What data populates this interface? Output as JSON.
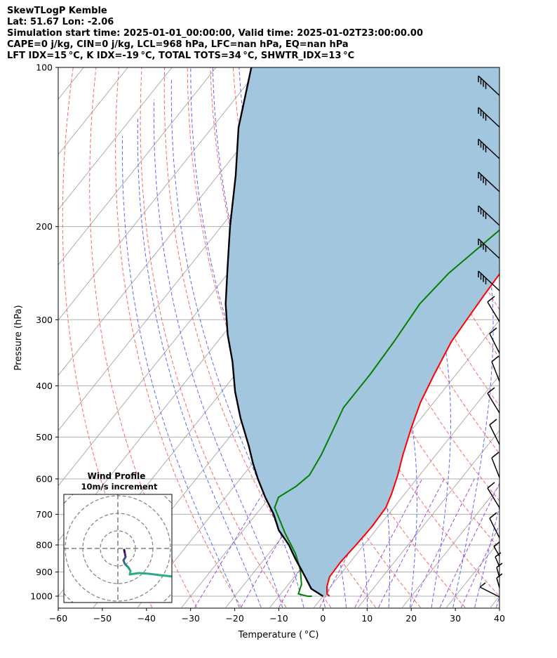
{
  "header": {
    "title": "SkewTLogP Kemble",
    "location": "Lat: 51.67   Lon: -2.06",
    "times": "Simulation start time: 2025-01-01_00:00:00, Valid time: 2025-01-02T23:00:00.00",
    "indices1": "CAPE=0 j/kg, CIN=0 j/kg, LCL=968 hPa, LFC=nan hPa, EQ=nan hPa",
    "indices2": "LFT IDX=15 °C, K IDX=-19 °C, TOTAL TOTS=34 °C, SHWTR_IDX=13 °C"
  },
  "chart_data": {
    "type": "skew-t log-p",
    "xlabel": "Temperature ( °C)",
    "ylabel": "Pressure (hPa)",
    "xlim": [
      -60,
      40
    ],
    "ylim": [
      1050,
      100
    ],
    "xticks": [
      "−60",
      "−50",
      "−40",
      "−30",
      "−20",
      "−10",
      "0",
      "10",
      "20",
      "30",
      "40"
    ],
    "yticks": [
      "100",
      "200",
      "300",
      "400",
      "500",
      "600",
      "700",
      "800",
      "900",
      "1000"
    ],
    "ytick_values": [
      100,
      200,
      300,
      400,
      500,
      600,
      700,
      800,
      900,
      1000
    ],
    "grid": true,
    "colors": {
      "temperature": "#ff0000",
      "dewpoint": "#008000",
      "parcel": "#000000",
      "shade": "#a3c6df",
      "dry_adiabats": "#ff6666",
      "moist_adiabats": "#5a68ff",
      "mixing_ratio": "#a04dd8",
      "isotherms": "#9a9a9a"
    },
    "series": [
      {
        "key": "temperature",
        "points": [
          [
            1.5,
            1000
          ],
          [
            0.5,
            990
          ],
          [
            -0.8,
            960
          ],
          [
            -2.0,
            920
          ],
          [
            -2.2,
            860
          ],
          [
            -1.8,
            800
          ],
          [
            -1.5,
            740
          ],
          [
            -1.8,
            680
          ],
          [
            -3,
            640
          ],
          [
            -5,
            590
          ],
          [
            -7.5,
            540
          ],
          [
            -10.5,
            480
          ],
          [
            -13,
            430
          ],
          [
            -15,
            380
          ],
          [
            -17,
            330
          ],
          [
            -17.5,
            300
          ],
          [
            -18,
            270
          ],
          [
            -18.5,
            235
          ],
          [
            -17.5,
            205
          ],
          [
            -13,
            175
          ],
          [
            -8,
            150
          ],
          [
            -3,
            125
          ],
          [
            1,
            100
          ]
        ]
      },
      {
        "key": "dewpoint",
        "points": [
          [
            -2.5,
            1000
          ],
          [
            -3.5,
            1000
          ],
          [
            -6,
            990
          ],
          [
            -7,
            950
          ],
          [
            -10,
            890
          ],
          [
            -14,
            830
          ],
          [
            -20,
            760
          ],
          [
            -27,
            680
          ],
          [
            -28,
            650
          ],
          [
            -26,
            620
          ],
          [
            -25,
            590
          ],
          [
            -26,
            540
          ],
          [
            -28,
            480
          ],
          [
            -29.5,
            440
          ],
          [
            -29.5,
            380
          ],
          [
            -30,
            330
          ],
          [
            -31,
            280
          ],
          [
            -30,
            245
          ],
          [
            -26,
            200
          ],
          [
            -21,
            170
          ],
          [
            -17,
            145
          ],
          [
            -11,
            120
          ],
          [
            -5,
            100
          ]
        ]
      },
      {
        "key": "parcel",
        "points": [
          [
            0,
            1000
          ],
          [
            -4,
            968
          ],
          [
            -6,
            940
          ],
          [
            -9,
            900
          ],
          [
            -13,
            850
          ],
          [
            -17,
            800
          ],
          [
            -22,
            750
          ],
          [
            -26,
            700
          ],
          [
            -31,
            650
          ],
          [
            -36,
            600
          ],
          [
            -40,
            560
          ],
          [
            -44,
            520
          ],
          [
            -51,
            460
          ],
          [
            -57,
            410
          ],
          [
            -63,
            360
          ],
          [
            -69,
            320
          ],
          [
            -75,
            280
          ],
          [
            -81,
            240
          ],
          [
            -88,
            200
          ],
          [
            -96,
            160
          ],
          [
            -104,
            130
          ],
          [
            -112,
            100
          ]
        ]
      }
    ],
    "wind_profile": {
      "title": "Wind Profile",
      "subtitle": "10m/s increment"
    }
  }
}
